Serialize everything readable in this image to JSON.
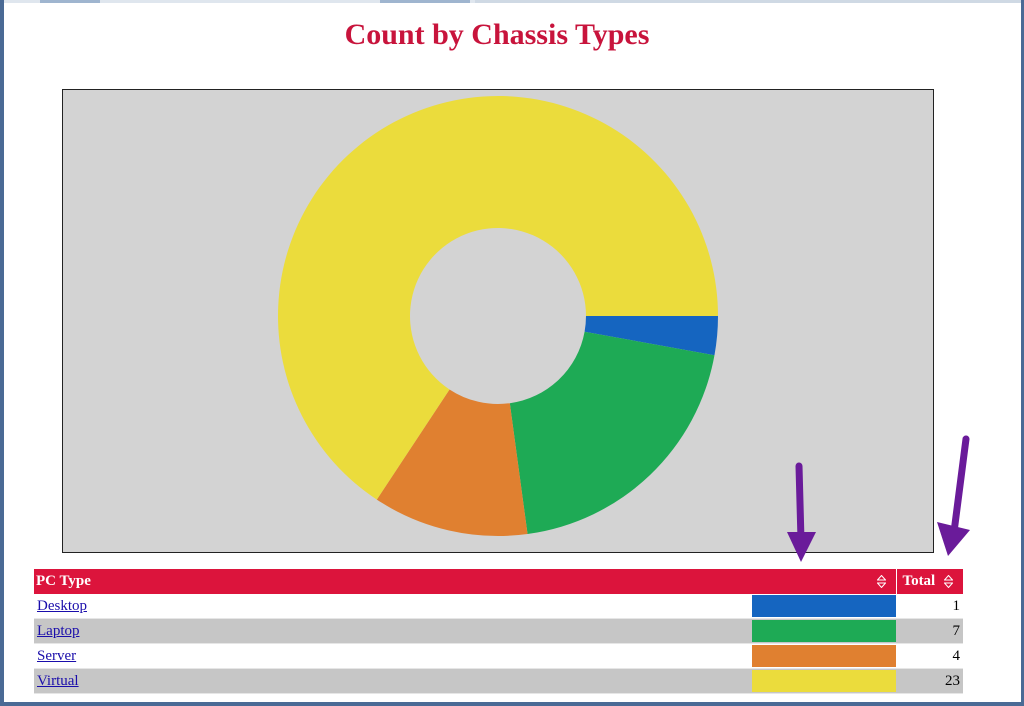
{
  "title": "Count by Chassis Types",
  "chart_data": {
    "type": "pie",
    "title": "Count by Chassis Types",
    "categories": [
      "Desktop",
      "Laptop",
      "Server",
      "Virtual"
    ],
    "values": [
      1,
      7,
      4,
      23
    ],
    "colors": [
      "#1565c0",
      "#1eaa55",
      "#e08030",
      "#ebdc3c"
    ],
    "donut": true,
    "start": "3 o'clock",
    "direction": "clockwise"
  },
  "table": {
    "headers": {
      "pc_type": "PC Type",
      "total": "Total"
    },
    "rows": [
      {
        "name": "Desktop",
        "color": "#1565c0",
        "total": "1"
      },
      {
        "name": "Laptop",
        "color": "#1eaa55",
        "total": "7"
      },
      {
        "name": "Server",
        "color": "#e08030",
        "total": "4"
      },
      {
        "name": "Virtual",
        "color": "#ebdc3c",
        "total": "23"
      }
    ]
  },
  "colors": {
    "accent": "#dc143c",
    "chart_background": "#d3d3d3",
    "annotation_arrow": "#6a1b9a"
  },
  "icons": {
    "sort": "sort-icon",
    "annotation": "arrow-down-icon"
  }
}
